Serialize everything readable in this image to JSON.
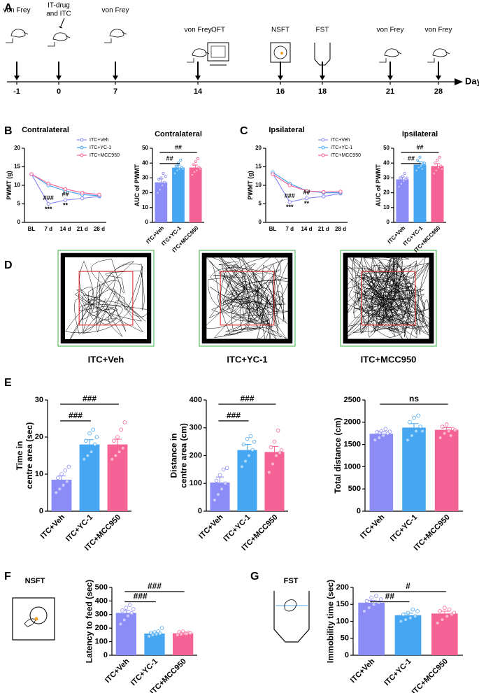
{
  "panel_labels": [
    "A",
    "B",
    "C",
    "D",
    "E",
    "F",
    "G"
  ],
  "timeline": {
    "ticks": [
      -1,
      0,
      7,
      14,
      16,
      18,
      21,
      28
    ],
    "unit": "Day",
    "events": [
      [
        "von Frey"
      ],
      [
        "IT-drug",
        "and ITC"
      ],
      [
        "von Frey"
      ],
      [
        "von Frey"
      ],
      [
        "OFT"
      ],
      [
        "NSFT"
      ],
      [
        "FST"
      ],
      [
        "von Frey"
      ],
      [
        "von Frey"
      ]
    ]
  },
  "tracks": {
    "labels": [
      "ITC+Veh",
      "ITC+YC-1",
      "ITC+MCC950"
    ]
  },
  "schematics": {
    "nsft": "NSFT",
    "fst": "FST"
  },
  "chart_data": [
    {
      "type": "line",
      "title": "Contralateral",
      "ylabel": [
        "PWMT (g)"
      ],
      "categories": [
        "BL",
        "7 d",
        "14 d",
        "21 d",
        "28 d"
      ],
      "series": [
        {
          "name": "ITC+Veh",
          "color": "#8c8cf7",
          "values": [
            13,
            5,
            6,
            6.5,
            7
          ]
        },
        {
          "name": "ITC+YC-1",
          "color": "#45a6f2",
          "values": [
            13,
            10,
            8.5,
            7.5,
            7.2
          ]
        },
        {
          "name": "ITC+MCC950",
          "color": "#f56295",
          "values": [
            13,
            10.5,
            9,
            8,
            7.5
          ]
        }
      ],
      "ylim": [
        0,
        20
      ],
      "yticks": [
        0,
        5,
        10,
        15,
        20
      ],
      "legend": "upper right",
      "annotations": [
        "###",
        "***",
        "##",
        "**"
      ]
    },
    {
      "type": "bar",
      "title": "Contralateral",
      "ylabel": [
        "AUC of PWMT"
      ],
      "categories": [
        "ITC+Veh",
        "ITC+YC-1",
        "ITC+MCC950"
      ],
      "values": [
        27,
        37,
        37
      ],
      "errors": [
        2.3,
        1.6,
        1.7
      ],
      "colors": [
        "#8c8cf7",
        "#45a6f2",
        "#f56295"
      ],
      "points": [
        [
          20,
          22,
          25,
          27,
          29,
          30,
          33,
          31
        ],
        [
          33,
          35,
          36,
          37,
          38,
          40,
          42,
          36
        ],
        [
          32,
          34,
          35,
          37,
          39,
          41,
          43,
          36
        ]
      ],
      "ylim": [
        0,
        50
      ],
      "yticks": [
        0,
        10,
        20,
        30,
        40,
        50
      ],
      "significance": [
        "##",
        "##"
      ]
    },
    {
      "type": "line",
      "title": "Ipsilateral",
      "ylabel": [
        "PWMT (g)"
      ],
      "categories": [
        "BL",
        "7 d",
        "14 d",
        "21 d",
        "28 d"
      ],
      "series": [
        {
          "name": "ITC+Veh",
          "color": "#8c8cf7",
          "values": [
            13.2,
            5.5,
            6.5,
            7,
            7.8
          ]
        },
        {
          "name": "ITC+YC-1",
          "color": "#45a6f2",
          "values": [
            13.5,
            10.5,
            8.5,
            8,
            8
          ]
        },
        {
          "name": "ITC+MCC950",
          "color": "#f56295",
          "values": [
            13,
            10,
            8.5,
            8.2,
            8.3
          ]
        }
      ],
      "ylim": [
        0,
        20
      ],
      "yticks": [
        0,
        5,
        10,
        15,
        20
      ],
      "legend": "upper right",
      "annotations": [
        "###",
        "***",
        "##",
        "**"
      ]
    },
    {
      "type": "bar",
      "title": "Ipsilateral",
      "ylabel": [
        "AUC of PWMT"
      ],
      "categories": [
        "ITC+Veh",
        "ITC+YC-1",
        "ITC+MCC950"
      ],
      "values": [
        29,
        39,
        38
      ],
      "errors": [
        1.6,
        1.8,
        1.6
      ],
      "colors": [
        "#8c8cf7",
        "#45a6f2",
        "#f56295"
      ],
      "points": [
        [
          24,
          26,
          28,
          29,
          30,
          31,
          33,
          30
        ],
        [
          35,
          37,
          38,
          40,
          42,
          44,
          36,
          40
        ],
        [
          33,
          35,
          37,
          38,
          40,
          42,
          44,
          36
        ]
      ],
      "ylim": [
        0,
        50
      ],
      "yticks": [
        0,
        10,
        20,
        30,
        40,
        50
      ],
      "significance": [
        "##",
        "##"
      ]
    },
    {
      "type": "bar",
      "ylabel": [
        "Time in",
        "centre area (sec)"
      ],
      "categories": [
        "ITC+Veh",
        "ITC+YC-1",
        "ITC+MCC950"
      ],
      "values": [
        8.5,
        18,
        18
      ],
      "errors": [
        1,
        1.3,
        1.4
      ],
      "colors": [
        "#8c8cf7",
        "#45a6f2",
        "#f56295"
      ],
      "points": [
        [
          5,
          6,
          7,
          8,
          9,
          10,
          11,
          12
        ],
        [
          14,
          15,
          16,
          18,
          19,
          21,
          22,
          20
        ],
        [
          14,
          15,
          16,
          17,
          19,
          20,
          22,
          24
        ]
      ],
      "ylim": [
        0,
        30
      ],
      "yticks": [
        0,
        10,
        20,
        30
      ],
      "significance": [
        "###",
        "###"
      ]
    },
    {
      "type": "bar",
      "ylabel": [
        "Distance in",
        "centre area (cm)"
      ],
      "categories": [
        "ITC+Veh",
        "ITC+YC-1",
        "ITC+MCC950"
      ],
      "values": [
        103,
        220,
        213
      ],
      "errors": [
        20,
        20,
        20
      ],
      "colors": [
        "#8c8cf7",
        "#45a6f2",
        "#f56295"
      ],
      "points": [
        [
          40,
          60,
          80,
          100,
          110,
          130,
          150,
          155
        ],
        [
          160,
          180,
          200,
          220,
          240,
          260,
          270,
          250
        ],
        [
          140,
          170,
          200,
          210,
          230,
          250,
          290,
          220
        ]
      ],
      "ylim": [
        0,
        400
      ],
      "yticks": [
        0,
        100,
        200,
        300,
        400
      ],
      "significance": [
        "###",
        "###"
      ]
    },
    {
      "type": "bar",
      "ylabel": [
        "Total distance (cm)"
      ],
      "categories": [
        "ITC+Veh",
        "ITC+YC-1",
        "ITC+MCC950"
      ],
      "values": [
        1740,
        1880,
        1830
      ],
      "errors": [
        45,
        90,
        50
      ],
      "colors": [
        "#8c8cf7",
        "#45a6f2",
        "#f56295"
      ],
      "points": [
        [
          1600,
          1650,
          1700,
          1750,
          1780,
          1800,
          1850,
          1790
        ],
        [
          1600,
          1700,
          1800,
          1900,
          2000,
          2100,
          2150,
          1800
        ],
        [
          1650,
          1750,
          1800,
          1850,
          1900,
          1950,
          1700,
          1820
        ]
      ],
      "ylim": [
        0,
        2500
      ],
      "yticks": [
        0,
        500,
        1000,
        1500,
        2000,
        2500
      ],
      "significance": [
        "ns"
      ]
    },
    {
      "type": "bar",
      "ylabel": [
        "Latency to feed (sec)"
      ],
      "categories": [
        "ITC+Veh",
        "ITC+YC-1",
        "ITC+MCC950"
      ],
      "values": [
        312,
        160,
        162
      ],
      "errors": [
        18,
        6,
        5
      ],
      "colors": [
        "#8c8cf7",
        "#45a6f2",
        "#f56295"
      ],
      "points": [
        [
          230,
          260,
          290,
          310,
          330,
          350,
          370,
          340
        ],
        [
          140,
          150,
          155,
          160,
          165,
          170,
          175,
          200
        ],
        [
          150,
          155,
          160,
          165,
          170,
          175,
          158,
          163
        ]
      ],
      "ylim": [
        0,
        500
      ],
      "yticks": [
        0,
        100,
        200,
        300,
        400,
        500
      ],
      "significance": [
        "###",
        "###"
      ]
    },
    {
      "type": "bar",
      "ylabel": [
        "Immobility time (sec)"
      ],
      "categories": [
        "ITC+Veh",
        "ITC+YC-1",
        "ITC+MCC950"
      ],
      "values": [
        155,
        118,
        123
      ],
      "errors": [
        7,
        6,
        7
      ],
      "colors": [
        "#8c8cf7",
        "#45a6f2",
        "#f56295"
      ],
      "points": [
        [
          130,
          140,
          150,
          155,
          160,
          170,
          175,
          165
        ],
        [
          100,
          105,
          110,
          115,
          120,
          125,
          135,
          130
        ],
        [
          95,
          105,
          115,
          120,
          130,
          140,
          135,
          125
        ]
      ],
      "ylim": [
        0,
        200
      ],
      "yticks": [
        0,
        50,
        100,
        150,
        200
      ],
      "significance": [
        "##",
        "#"
      ]
    }
  ]
}
